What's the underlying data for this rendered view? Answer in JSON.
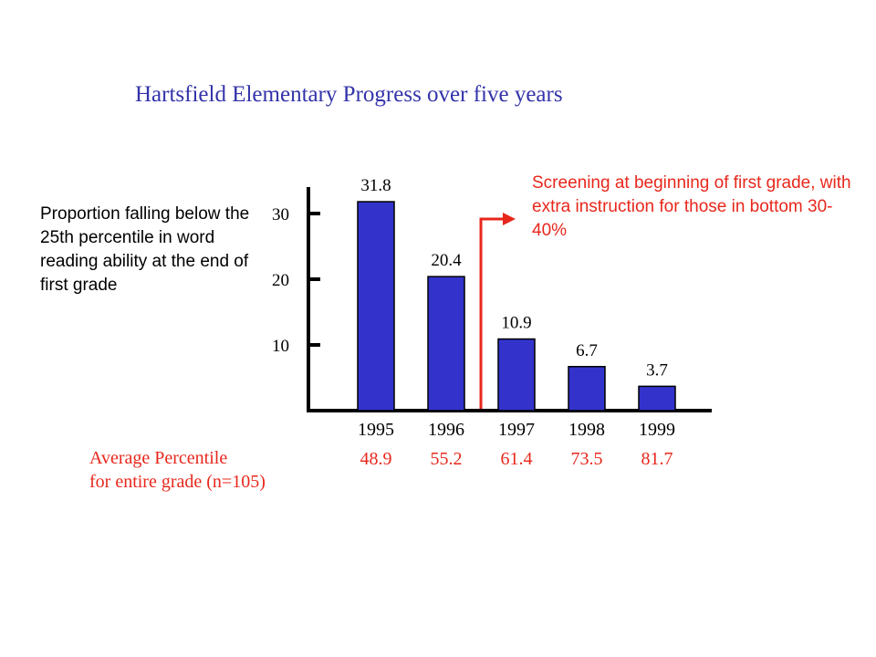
{
  "chart_data": {
    "type": "bar",
    "title": "Hartsfield Elementary Progress over five years",
    "ylabel": "Proportion falling below the 25th percentile in word reading ability at the end of first grade",
    "categories": [
      "1995",
      "1996",
      "1997",
      "1998",
      "1999"
    ],
    "values": [
      31.8,
      20.4,
      10.9,
      6.7,
      3.7
    ],
    "value_labels": [
      "31.8",
      "20.4",
      "10.9",
      "6.7",
      "3.7"
    ],
    "yticks": [
      {
        "value": 10,
        "label": "10"
      },
      {
        "value": 20,
        "label": "20"
      },
      {
        "value": 30,
        "label": "30"
      }
    ],
    "ylim": [
      0,
      35
    ],
    "grid": false,
    "legend": "none",
    "bar_color": "#3333cc",
    "annotation": {
      "text": "Screening at beginning of first grade, with extra instruction for those in bottom 30-40%",
      "color": "#e8271c",
      "marks_between": [
        "1996",
        "1997"
      ]
    },
    "average_percentile": {
      "label": "Average Percentile",
      "sublabel": "for entire grade (n=105)",
      "values": [
        "48.9",
        "55.2",
        "61.4",
        "73.5",
        "81.7"
      ],
      "color": "#e8271c"
    }
  }
}
